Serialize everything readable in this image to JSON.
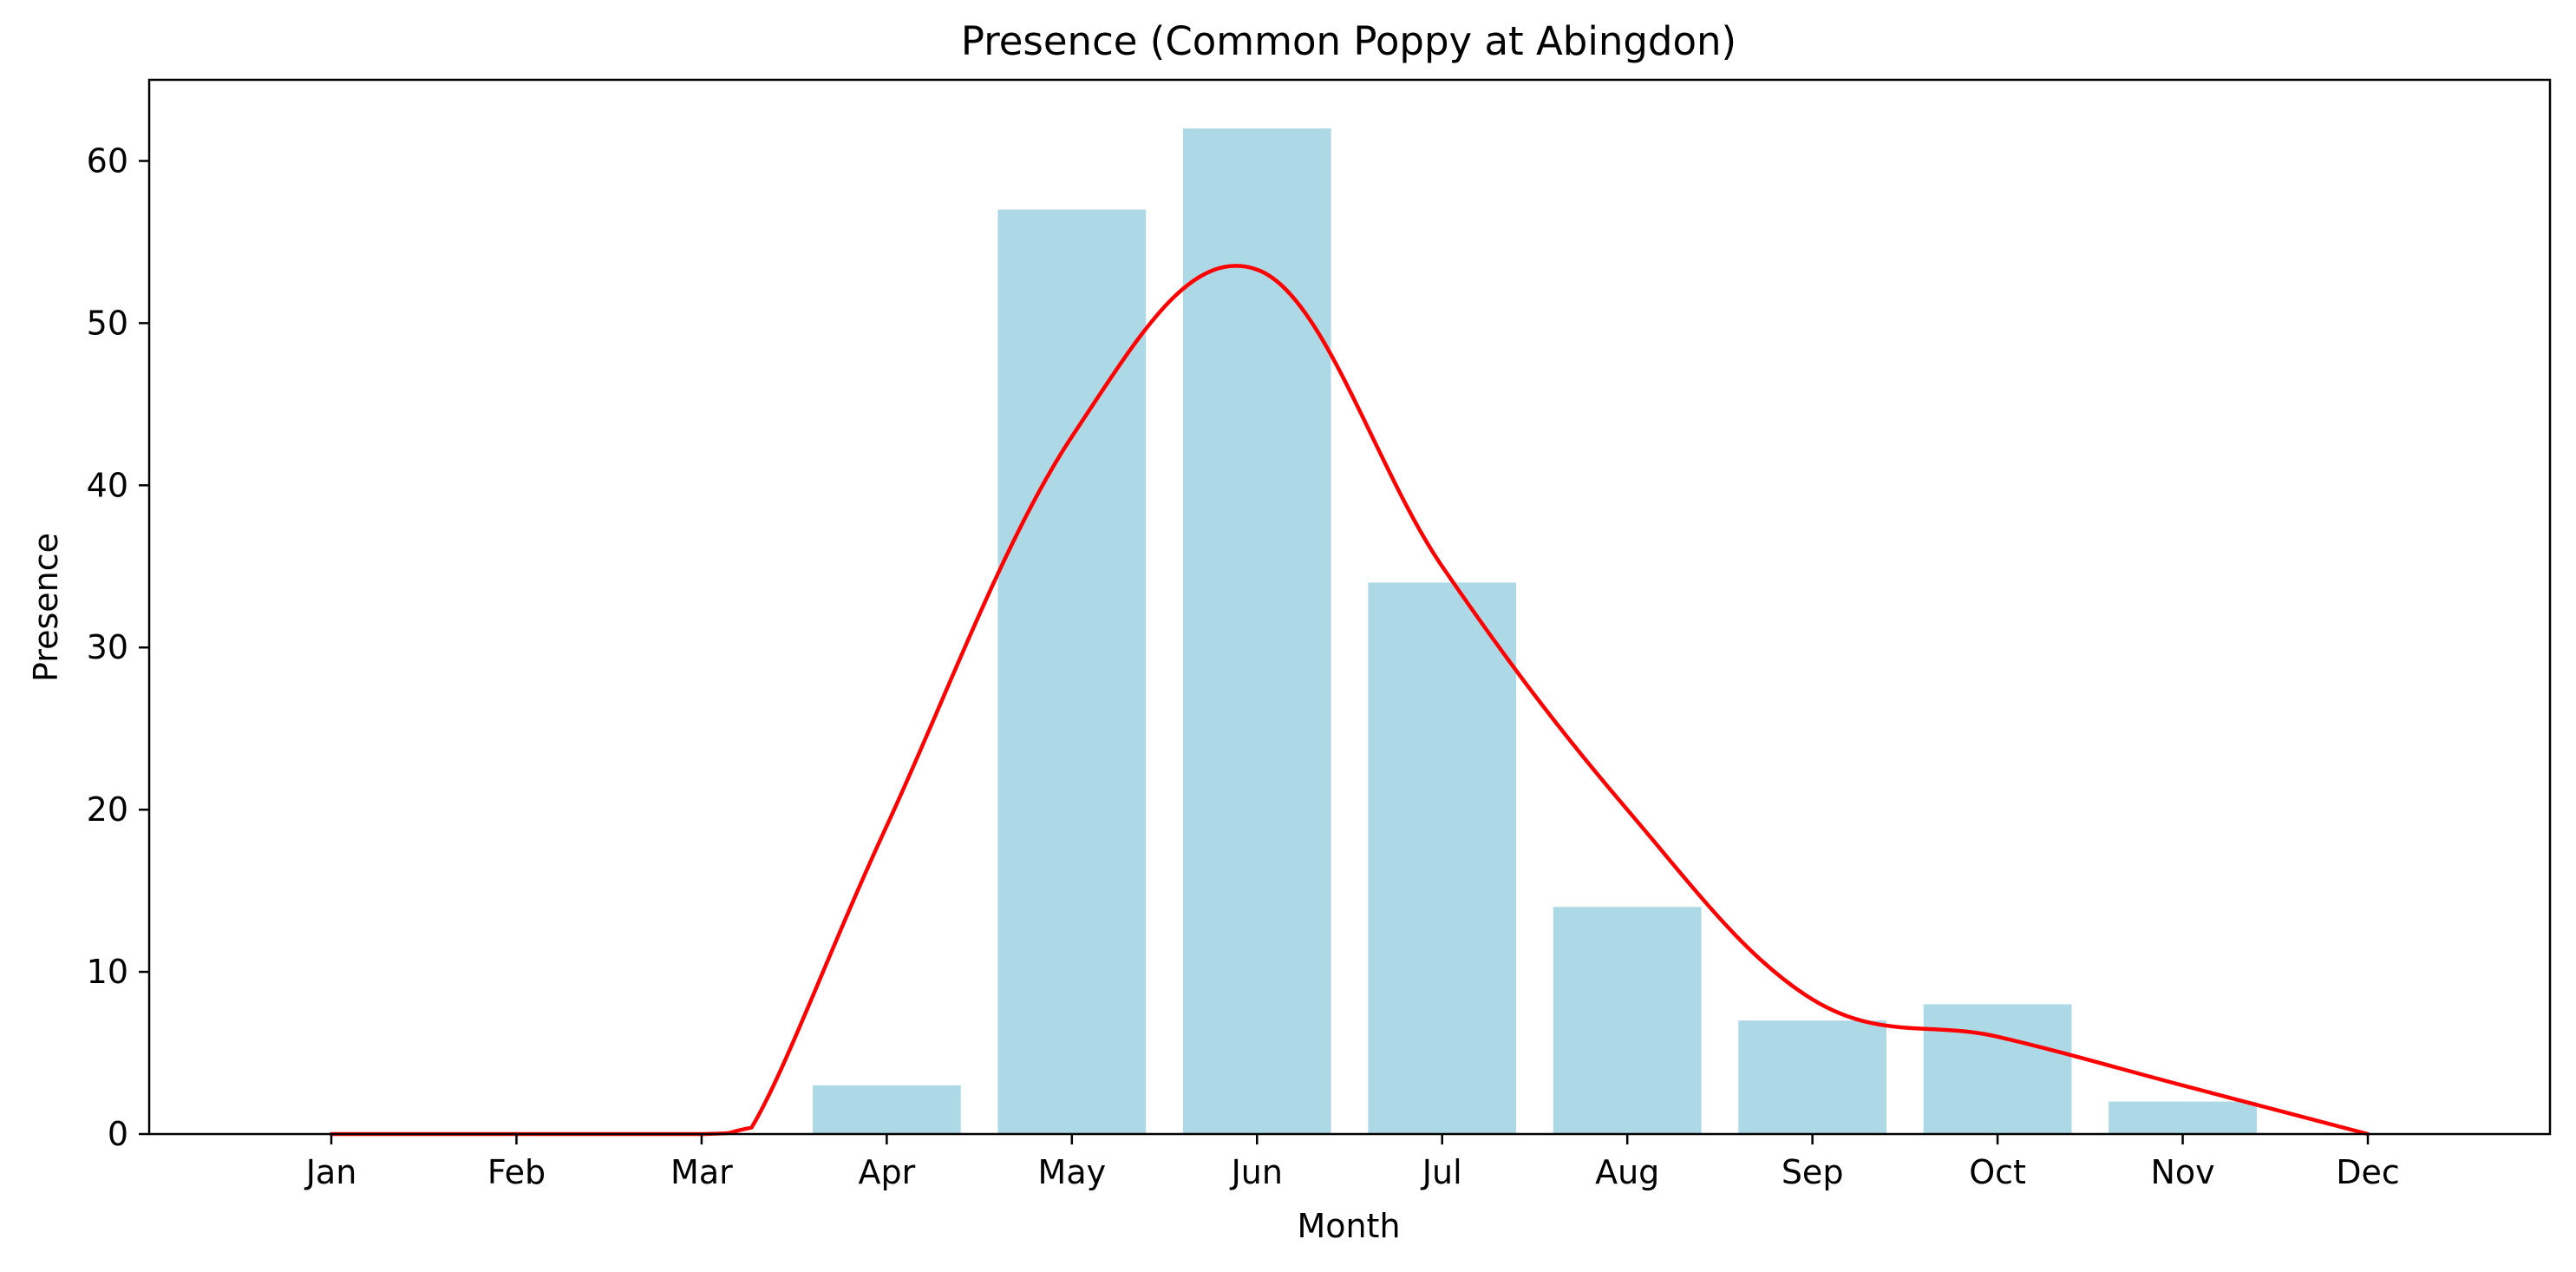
{
  "chart_data": {
    "type": "bar",
    "title": "Presence (Common Poppy at Abingdon)",
    "xlabel": "Month",
    "ylabel": "Presence",
    "categories": [
      "Jan",
      "Feb",
      "Mar",
      "Apr",
      "May",
      "Jun",
      "Jul",
      "Aug",
      "Sep",
      "Oct",
      "Nov",
      "Dec"
    ],
    "series": [
      {
        "type": "bar",
        "values": [
          0,
          0,
          0,
          3,
          57,
          62,
          34,
          14,
          7,
          8,
          2,
          0
        ]
      },
      {
        "type": "line",
        "smooth": true,
        "points": [
          {
            "x": "Jan",
            "y": 0
          },
          {
            "x": "Feb",
            "y": 0
          },
          {
            "x": "Mar",
            "y": 0
          },
          {
            "x": "Mar",
            "y": 0.4
          },
          {
            "x": "Apr",
            "y": 19
          },
          {
            "x": "May",
            "y": 43
          },
          {
            "x": "Jun",
            "y": 53.3
          },
          {
            "x": "Jul",
            "y": 35
          },
          {
            "x": "Aug",
            "y": 20
          },
          {
            "x": "Sep",
            "y": 8.3
          },
          {
            "x": "Oct",
            "y": 6
          },
          {
            "x": "Nov",
            "y": 3
          },
          {
            "x": "Dec",
            "y": 0
          }
        ]
      }
    ],
    "ylim": [
      0,
      65
    ],
    "yticks": [
      0,
      10,
      20,
      30,
      40,
      50,
      60
    ],
    "grid": false,
    "colors": {
      "bar": "#add8e6",
      "line": "#ff0000",
      "axis": "#000000"
    }
  }
}
